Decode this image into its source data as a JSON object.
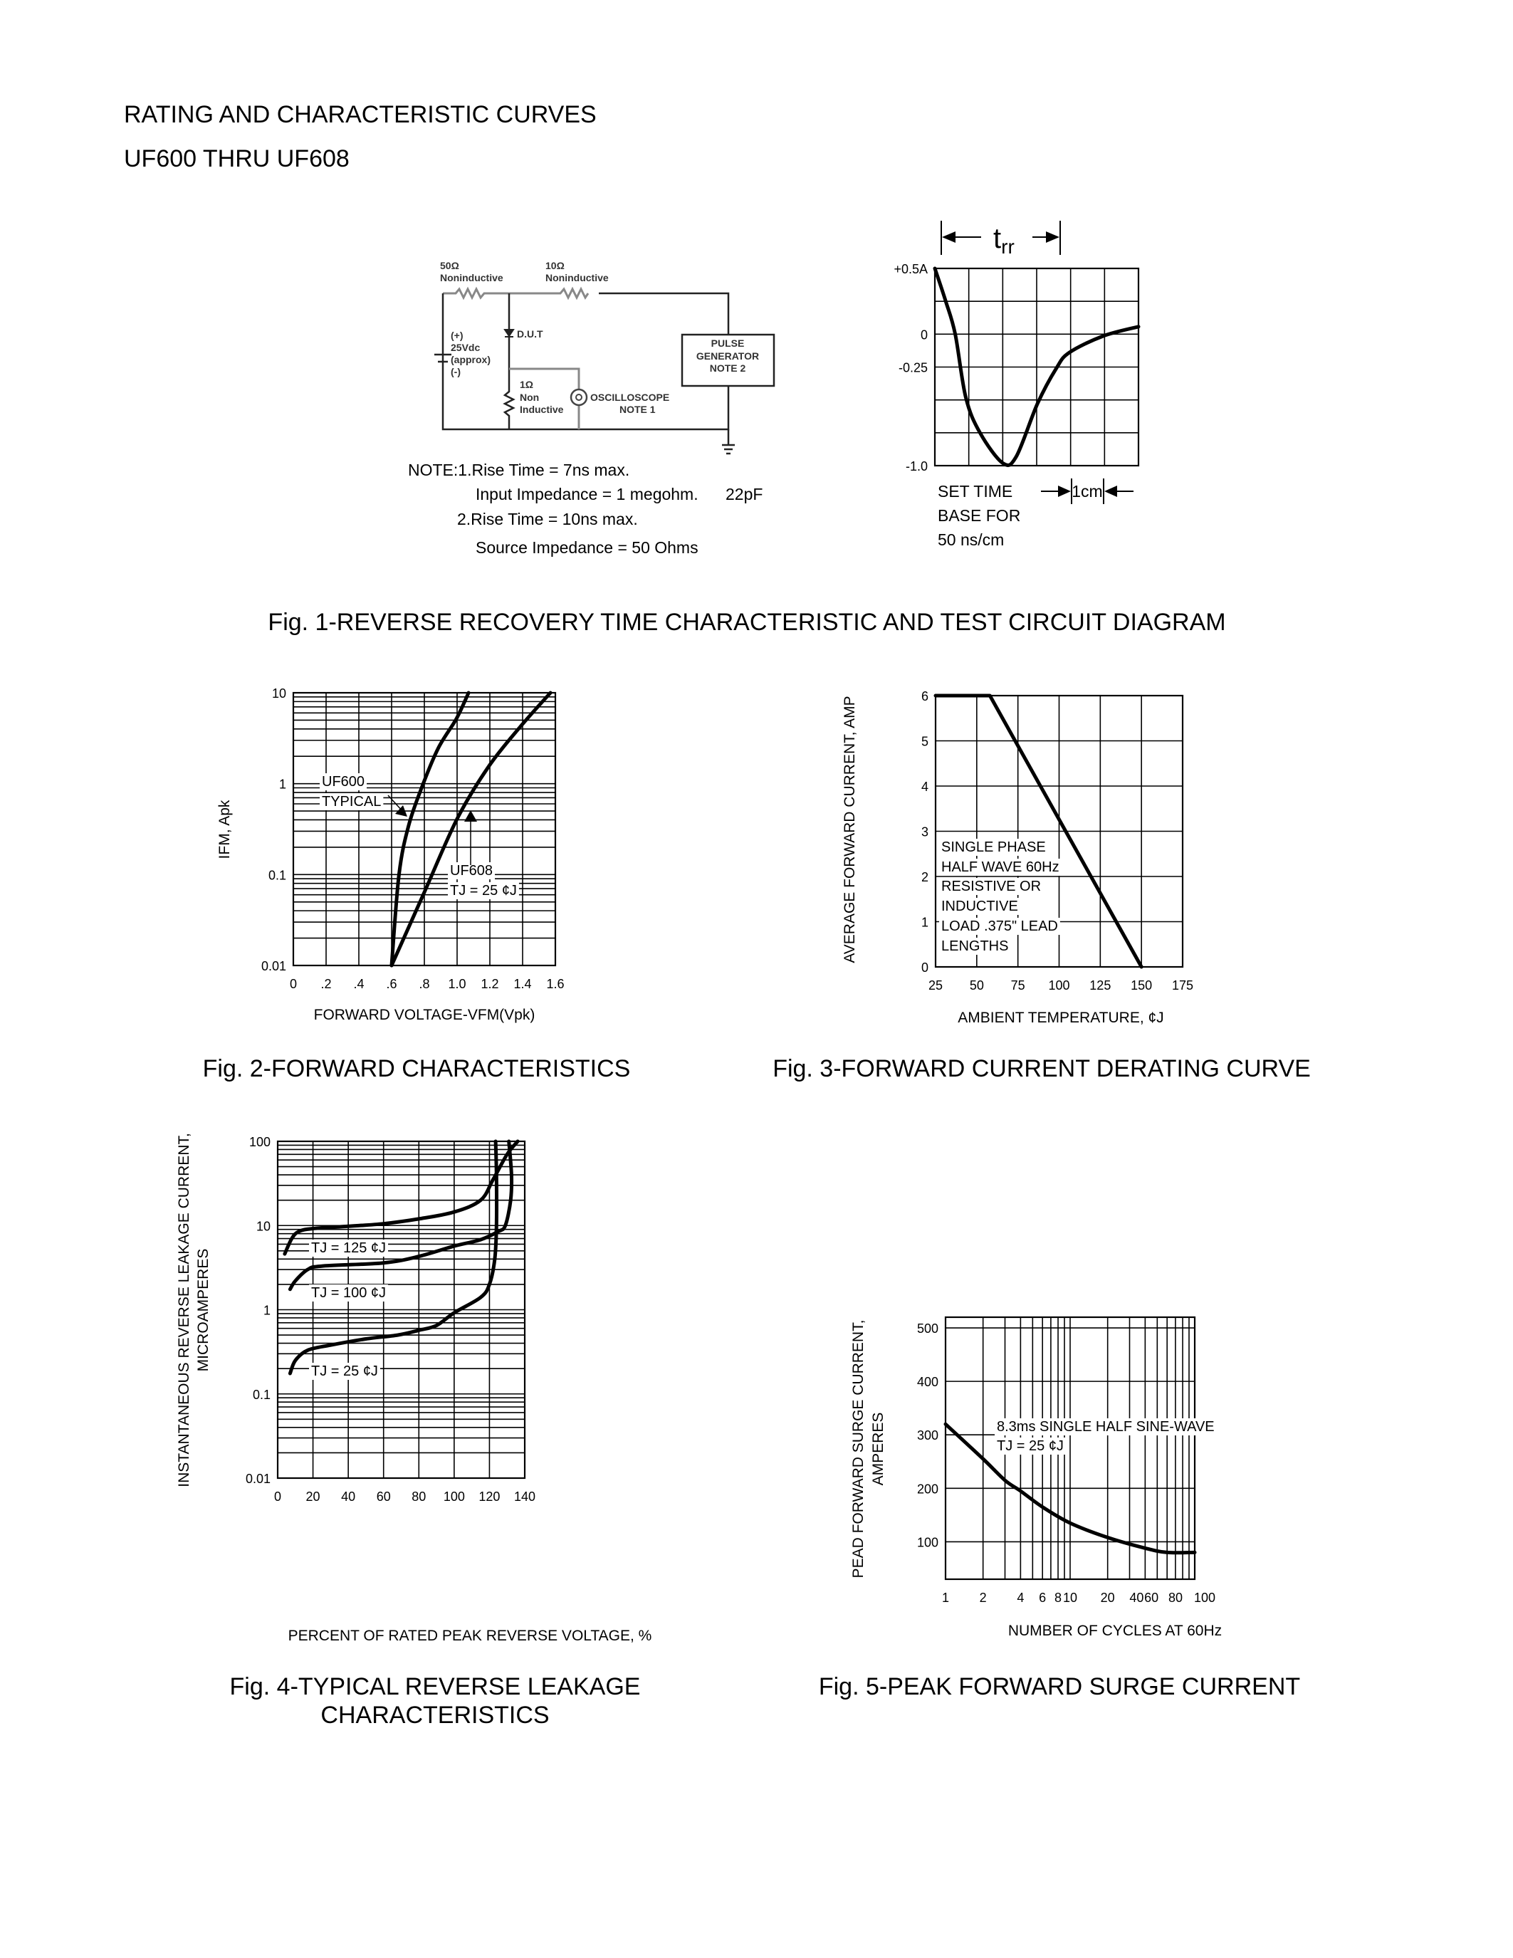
{
  "header": {
    "title": "RATING AND CHARACTERISTIC CURVES",
    "subtitle": "UF600 THRU UF608"
  },
  "circuit": {
    "r1_value": "50Ω",
    "r1_type": "Noninductive",
    "r2_value": "10Ω",
    "r2_type": "Noninductive",
    "dut": "D.U.T",
    "supply": [
      "(+)",
      "25Vdc",
      "(approx)",
      "(-)"
    ],
    "r3": [
      "1Ω",
      "Non",
      "Inductive"
    ],
    "oscilloscope": [
      "OSCILLOSCOPE",
      "NOTE 1"
    ],
    "pulse_generator": [
      "PULSE",
      "GENERATOR",
      "NOTE 2"
    ],
    "notes": [
      "NOTE:1.Rise Time = 7ns max.",
      "Input Impedance = 1 megohm.",
      "22pF",
      "2.Rise Time = 10ns max.",
      "Source Impedance = 50 Ohms"
    ]
  },
  "chart_data": [
    {
      "type": "line",
      "title": [
        "Fig. 1-REVERSE RECOVERY TIME CHARACTERISTIC AND TEST CIRCUIT DIAGRAM"
      ],
      "xscale": "linear",
      "yscale": "linear",
      "xlim": [
        0,
        6
      ],
      "ylim": [
        -1.0,
        0.5
      ],
      "x_grid_step": 1,
      "y_grid_step": 0.25,
      "grid": true,
      "x_ticks": [],
      "x_tick_labels": [],
      "y_ticks": [
        0.5,
        0,
        -0.25,
        -1.0
      ],
      "y_tick_labels": [
        "+0.5A",
        "0",
        "-0.25",
        "-1.0"
      ],
      "xlabel": "",
      "ylabel": [],
      "trr_label": {
        "main": "t",
        "sub": "rr"
      },
      "scale_label": "1cm",
      "annotations": [
        "SET TIME",
        "BASE FOR",
        "50 ns/cm"
      ],
      "series": [
        {
          "x": [
            0,
            0.32,
            0.6,
            0.91,
            1.33,
            2.0,
            2.4,
            3.02,
            3.58,
            3.96,
            4.95,
            6.0
          ],
          "y": [
            0.5,
            0.25,
            0,
            -0.48,
            -0.75,
            -0.98,
            -0.93,
            -0.53,
            -0.26,
            -0.14,
            -0.015,
            0.057
          ]
        }
      ]
    },
    {
      "type": "line",
      "title": [
        "Fig. 2-FORWARD CHARACTERISTICS"
      ],
      "xscale": "linear",
      "yscale": "log",
      "xlim": [
        0,
        1.6
      ],
      "ylim": [
        0.01,
        10
      ],
      "x_grid_step": 0.2,
      "grid": true,
      "x_ticks": [
        0,
        0.2,
        0.4,
        0.6,
        0.8,
        1.0,
        1.2,
        1.4,
        1.6
      ],
      "x_tick_labels": [
        "0",
        ".2",
        ".4",
        ".6",
        ".8",
        "1.0",
        "1.2",
        "1.4",
        "1.6"
      ],
      "y_ticks": [
        10,
        1,
        0.1,
        0.01
      ],
      "y_tick_labels": [
        "10",
        "1",
        "0.1",
        "0.01"
      ],
      "xlabel": "FORWARD VOLTAGE-VFM(Vpk)",
      "ylabel": [
        "IFM, Apk"
      ],
      "annotations": [
        "UF600",
        "TYPICAL",
        "UF608",
        "TJ = 25 ¢J"
      ],
      "series": [
        {
          "name": "UF600",
          "x": [
            0.6,
            0.645,
            0.705,
            0.793,
            0.887,
            0.996,
            1.07
          ],
          "y": [
            0.01,
            0.1,
            0.35,
            1.0,
            2.5,
            5.2,
            10
          ]
        },
        {
          "name": "UF608",
          "x": [
            0.6,
            0.8,
            1.0,
            1.193,
            1.389,
            1.57
          ],
          "y": [
            0.01,
            0.064,
            0.41,
            1.55,
            4.3,
            10
          ]
        }
      ]
    },
    {
      "type": "line",
      "title": [
        "Fig. 3-FORWARD CURRENT DERATING CURVE"
      ],
      "xscale": "linear",
      "yscale": "linear",
      "xlim": [
        25,
        175
      ],
      "ylim": [
        0,
        6
      ],
      "x_grid_step": 25,
      "y_grid_step": 1,
      "grid": true,
      "x_ticks": [
        25,
        50,
        75,
        100,
        125,
        150,
        175
      ],
      "x_tick_labels": [
        "25",
        "50",
        "75",
        "100",
        "125",
        "150",
        "175"
      ],
      "y_ticks": [
        6,
        5,
        4,
        3,
        2,
        1,
        0
      ],
      "y_tick_labels": [
        "6",
        "5",
        "4",
        "3",
        "2",
        "1",
        "0"
      ],
      "xlabel": "AMBIENT TEMPERATURE, ¢J",
      "ylabel": [
        "AVERAGE FORWARD CURRENT, AMP"
      ],
      "annotations": [
        "SINGLE PHASE",
        "HALF WAVE 60Hz",
        "RESISTIVE OR",
        "INDUCTIVE",
        "LOAD .375\" LEAD",
        "LENGTHS"
      ],
      "series": [
        {
          "x": [
            25,
            58,
            150
          ],
          "y": [
            6,
            6,
            0
          ]
        }
      ]
    },
    {
      "type": "line",
      "title": [
        "Fig. 4-TYPICAL REVERSE LEAKAGE",
        "CHARACTERISTICS"
      ],
      "xscale": "linear",
      "yscale": "log",
      "xlim": [
        0,
        140
      ],
      "ylim": [
        0.01,
        100
      ],
      "x_grid_step": 20,
      "grid": true,
      "x_ticks": [
        0,
        20,
        40,
        60,
        80,
        100,
        120,
        140
      ],
      "x_tick_labels": [
        "0",
        "20",
        "40",
        "60",
        "80",
        "100",
        "120",
        "140"
      ],
      "y_ticks": [
        100,
        10,
        1,
        0.1,
        0.01
      ],
      "y_tick_labels": [
        "100",
        "10",
        "1",
        "0.1",
        "0.01"
      ],
      "xlabel": "PERCENT OF RATED PEAK REVERSE VOLTAGE, %",
      "ylabel": [
        "INSTANTANEOUS REVERSE LEAKAGE CURRENT,",
        "MICROAMPERES"
      ],
      "annotations": [
        "TJ = 125 ¢J",
        "TJ = 100 ¢J",
        "TJ = 25 ¢J"
      ],
      "series": [
        {
          "name": "TJ = 125 ¢J",
          "x": [
            4,
            8,
            12,
            20,
            40,
            60,
            80,
            100,
            115,
            122,
            130,
            136
          ],
          "y": [
            4.6,
            7,
            8.5,
            9.2,
            9.8,
            10.5,
            12,
            14.5,
            20,
            35,
            70,
            100
          ]
        },
        {
          "name": "TJ = 100 ¢J",
          "x": [
            7,
            10,
            17,
            25,
            60,
            80,
            100,
            115,
            125,
            129,
            132,
            132.5,
            131
          ],
          "y": [
            1.75,
            2.2,
            3,
            3.3,
            3.6,
            4.3,
            5.7,
            6.8,
            8.5,
            10,
            20,
            40,
            100
          ]
        },
        {
          "name": "TJ = 25 ¢J",
          "x": [
            7,
            10,
            17,
            30,
            50,
            68,
            80,
            90,
            100,
            115,
            120,
            123,
            124,
            124,
            123.5
          ],
          "y": [
            0.175,
            0.25,
            0.33,
            0.38,
            0.45,
            0.5,
            0.57,
            0.65,
            0.92,
            1.4,
            2,
            4,
            10,
            40,
            100
          ]
        }
      ]
    },
    {
      "type": "line",
      "title": [
        "Fig. 5-PEAK FORWARD SURGE CURRENT"
      ],
      "xscale": "log",
      "yscale": "linear",
      "xlim": [
        1,
        100
      ],
      "ylim": [
        30,
        520
      ],
      "grid": true,
      "x_ticks": [
        1,
        2,
        4,
        6,
        8,
        10,
        20,
        40,
        60,
        80,
        100
      ],
      "x_tick_labels": [
        "1",
        "2",
        "4",
        "6",
        "8",
        "10",
        "20",
        "40",
        "60",
        "80",
        "100"
      ],
      "y_ticks": [
        500,
        400,
        300,
        200,
        100
      ],
      "y_tick_labels": [
        "500",
        "400",
        "300",
        "200",
        "100"
      ],
      "xlabel": "NUMBER OF CYCLES AT 60Hz",
      "ylabel": [
        "PEAD FORWARD SURGE CURRENT,",
        "AMPERES"
      ],
      "annotations": [
        "8.3ms SINGLE HALF SINE-WAVE",
        "TJ = 25 ¢J"
      ],
      "series": [
        {
          "x": [
            1,
            2,
            3,
            4,
            6,
            10,
            20,
            40,
            60,
            100
          ],
          "y": [
            320,
            255,
            215,
            195,
            165,
            135,
            108,
            88,
            80,
            80
          ]
        }
      ]
    }
  ]
}
